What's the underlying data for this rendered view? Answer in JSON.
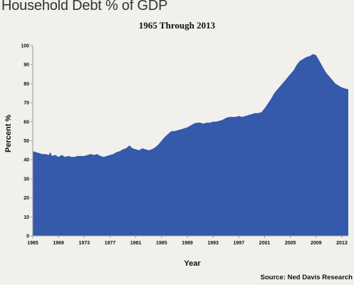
{
  "header": {
    "title": "Household Debt % of GDP",
    "subtitle": "1965 Through 2013"
  },
  "source": "Source: Ned Davis Research",
  "colors": {
    "area_fill": "#3559ab",
    "background": "#f1f0ec",
    "axis": "#999999"
  },
  "chart_data": {
    "type": "area",
    "title": "1965 Through 2013",
    "xlabel": "Year",
    "ylabel": "Percent %",
    "xlim": [
      1965,
      2014
    ],
    "ylim": [
      0,
      100
    ],
    "x_ticks": [
      1965,
      1969,
      1973,
      1977,
      1981,
      1985,
      1989,
      1993,
      1997,
      2001,
      2005,
      2009,
      2013
    ],
    "y_ticks": [
      0,
      10,
      20,
      30,
      40,
      50,
      60,
      70,
      80,
      90,
      100
    ],
    "grid": false,
    "legend": "none",
    "series": [
      {
        "x": [
          1965.0,
          1965.5,
          1966.0,
          1966.5,
          1967.0,
          1967.5,
          1967.7,
          1968.0,
          1968.5,
          1969.0,
          1969.5,
          1970.0,
          1970.5,
          1971.0,
          1971.5,
          1972.0,
          1972.5,
          1973.0,
          1973.5,
          1974.0,
          1974.5,
          1975.0,
          1975.5,
          1976.0,
          1976.5,
          1977.0,
          1977.5,
          1978.0,
          1978.5,
          1979.0,
          1979.5,
          1980.0,
          1980.5,
          1981.0,
          1981.5,
          1982.0,
          1982.5,
          1983.0,
          1983.5,
          1984.0,
          1984.5,
          1985.0,
          1985.5,
          1986.0,
          1986.5,
          1987.0,
          1987.5,
          1988.0,
          1988.5,
          1989.0,
          1989.5,
          1990.0,
          1990.5,
          1991.0,
          1991.5,
          1992.0,
          1992.5,
          1993.0,
          1993.5,
          1994.0,
          1994.5,
          1995.0,
          1995.5,
          1996.0,
          1996.5,
          1997.0,
          1997.5,
          1998.0,
          1998.5,
          1999.0,
          1999.5,
          2000.0,
          2000.5,
          2001.0,
          2001.5,
          2002.0,
          2002.5,
          2003.0,
          2003.5,
          2004.0,
          2004.5,
          2005.0,
          2005.5,
          2006.0,
          2006.5,
          2007.0,
          2007.5,
          2008.0,
          2008.5,
          2009.0,
          2009.5,
          2010.0,
          2010.5,
          2011.0,
          2011.5,
          2012.0,
          2012.5,
          2013.0,
          2013.5,
          2014.0
        ],
        "values": [
          44.5,
          44.0,
          43.5,
          43.0,
          43.0,
          42.5,
          44.0,
          42.0,
          42.5,
          41.5,
          42.5,
          41.5,
          42.0,
          41.5,
          41.5,
          42.0,
          42.0,
          42.0,
          42.5,
          43.0,
          42.5,
          43.0,
          42.0,
          41.5,
          42.0,
          42.5,
          43.0,
          44.0,
          44.5,
          45.5,
          46.0,
          47.5,
          46.0,
          45.5,
          45.0,
          46.0,
          45.5,
          45.0,
          45.5,
          46.5,
          48.0,
          50.0,
          52.0,
          53.5,
          55.0,
          55.0,
          55.5,
          56.0,
          56.5,
          57.0,
          58.0,
          59.0,
          59.5,
          59.5,
          59.0,
          59.5,
          59.5,
          60.0,
          60.0,
          60.5,
          61.0,
          62.0,
          62.5,
          62.5,
          62.5,
          63.0,
          62.5,
          63.0,
          63.5,
          64.0,
          64.5,
          64.5,
          65.0,
          67.0,
          69.5,
          72.0,
          75.0,
          77.0,
          79.0,
          81.0,
          83.0,
          85.0,
          87.0,
          90.0,
          92.0,
          93.0,
          94.0,
          94.5,
          95.5,
          95.0,
          92.0,
          89.0,
          86.0,
          84.0,
          82.0,
          80.0,
          79.0,
          78.0,
          77.5,
          77.0
        ]
      }
    ]
  }
}
